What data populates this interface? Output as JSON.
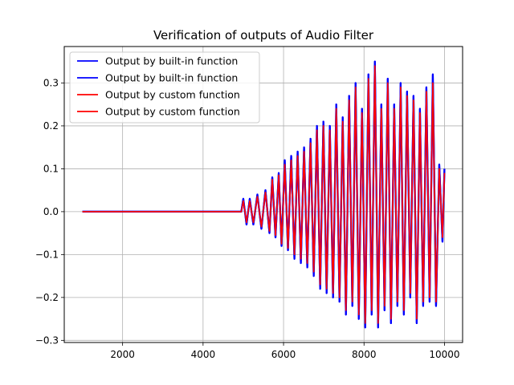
{
  "chart_data": {
    "type": "line",
    "title": "Verification of outputs of Audio Filter",
    "xlabel": "",
    "ylabel": "",
    "xlim": [
      550,
      10450
    ],
    "ylim": [
      -0.305,
      0.385
    ],
    "x_ticks": [
      2000,
      4000,
      6000,
      8000,
      10000
    ],
    "x_tick_labels": [
      "2000",
      "4000",
      "6000",
      "8000",
      "10000"
    ],
    "y_ticks": [
      -0.3,
      -0.2,
      -0.1,
      0.0,
      0.1,
      0.2,
      0.3
    ],
    "y_tick_labels": [
      "−0.3",
      "−0.2",
      "−0.1",
      "0.0",
      "0.1",
      "0.2",
      "0.3"
    ],
    "grid": true,
    "legend_position": "upper-left",
    "series": [
      {
        "name": "Output by built-in function",
        "color": "#0000ff",
        "x": [
          1000,
          4950,
          5000,
          5080,
          5160,
          5250,
          5350,
          5450,
          5550,
          5650,
          5720,
          5800,
          5880,
          5950,
          6030,
          6110,
          6190,
          6270,
          6350,
          6430,
          6510,
          6590,
          6670,
          6750,
          6830,
          6910,
          6990,
          7070,
          7150,
          7230,
          7310,
          7390,
          7470,
          7550,
          7630,
          7710,
          7790,
          7870,
          7950,
          8030,
          8110,
          8190,
          8270,
          8350,
          8430,
          8510,
          8590,
          8670,
          8750,
          8830,
          8910,
          8990,
          9070,
          9150,
          9230,
          9310,
          9390,
          9470,
          9550,
          9630,
          9710,
          9790,
          9870,
          9950,
          10000
        ],
        "y": [
          0.0,
          0.0,
          0.03,
          -0.03,
          0.03,
          -0.03,
          0.04,
          -0.04,
          0.05,
          -0.05,
          0.08,
          -0.06,
          0.09,
          -0.08,
          0.12,
          -0.09,
          0.13,
          -0.11,
          0.14,
          -0.12,
          0.15,
          -0.13,
          0.17,
          -0.15,
          0.2,
          -0.18,
          0.21,
          -0.19,
          0.2,
          -0.2,
          0.25,
          -0.21,
          0.22,
          -0.24,
          0.27,
          -0.22,
          0.3,
          -0.25,
          0.24,
          -0.27,
          0.32,
          -0.24,
          0.35,
          -0.27,
          0.25,
          -0.23,
          0.31,
          -0.26,
          0.25,
          -0.22,
          0.3,
          -0.24,
          0.28,
          -0.2,
          0.27,
          -0.26,
          0.24,
          -0.22,
          0.29,
          -0.21,
          0.32,
          -0.22,
          0.11,
          -0.07,
          0.1
        ]
      },
      {
        "name": "Output by built-in function",
        "color": "#0000ff",
        "x": [
          1000,
          4950,
          5000,
          5080,
          5160,
          5250,
          5350,
          5450,
          5550,
          5650,
          5720,
          5800,
          5880,
          5950,
          6030,
          6110,
          6190,
          6270,
          6350,
          6430,
          6510,
          6590,
          6670,
          6750,
          6830,
          6910,
          6990,
          7070,
          7150,
          7230,
          7310,
          7390,
          7470,
          7550,
          7630,
          7710,
          7790,
          7870,
          7950,
          8030,
          8110,
          8190,
          8270,
          8350,
          8430,
          8510,
          8590,
          8670,
          8750,
          8830,
          8910,
          8990,
          9070,
          9150,
          9230,
          9310,
          9390,
          9470,
          9550,
          9630,
          9710,
          9790,
          9870,
          9950,
          10000
        ],
        "y": [
          0.0,
          0.0,
          0.03,
          -0.03,
          0.03,
          -0.03,
          0.04,
          -0.04,
          0.05,
          -0.05,
          0.08,
          -0.06,
          0.09,
          -0.08,
          0.12,
          -0.09,
          0.13,
          -0.11,
          0.14,
          -0.12,
          0.15,
          -0.13,
          0.17,
          -0.15,
          0.2,
          -0.18,
          0.21,
          -0.19,
          0.2,
          -0.2,
          0.25,
          -0.21,
          0.22,
          -0.24,
          0.27,
          -0.22,
          0.3,
          -0.25,
          0.24,
          -0.27,
          0.32,
          -0.24,
          0.35,
          -0.27,
          0.25,
          -0.23,
          0.31,
          -0.26,
          0.25,
          -0.22,
          0.3,
          -0.24,
          0.28,
          -0.2,
          0.27,
          -0.26,
          0.24,
          -0.22,
          0.29,
          -0.21,
          0.32,
          -0.22,
          0.11,
          -0.07,
          0.1
        ]
      },
      {
        "name": "Output by custom function",
        "color": "#ff0000",
        "x": [
          1000,
          4950,
          5000,
          5080,
          5160,
          5250,
          5350,
          5450,
          5550,
          5650,
          5720,
          5800,
          5880,
          5950,
          6030,
          6110,
          6190,
          6270,
          6350,
          6430,
          6510,
          6590,
          6670,
          6750,
          6830,
          6910,
          6990,
          7070,
          7150,
          7230,
          7310,
          7390,
          7470,
          7550,
          7630,
          7710,
          7790,
          7870,
          7950,
          8030,
          8110,
          8190,
          8270,
          8350,
          8430,
          8510,
          8590,
          8670,
          8750,
          8830,
          8910,
          8990,
          9070,
          9150,
          9230,
          9310,
          9390,
          9470,
          9550,
          9630,
          9710,
          9790,
          9870,
          9950,
          10000
        ],
        "y": [
          0.0,
          0.0,
          0.025,
          -0.025,
          0.025,
          -0.025,
          0.035,
          -0.035,
          0.045,
          -0.045,
          0.075,
          -0.055,
          0.085,
          -0.075,
          0.11,
          -0.085,
          0.12,
          -0.1,
          0.13,
          -0.11,
          0.14,
          -0.12,
          0.16,
          -0.14,
          0.19,
          -0.17,
          0.2,
          -0.18,
          0.19,
          -0.19,
          0.24,
          -0.2,
          0.21,
          -0.23,
          0.26,
          -0.21,
          0.29,
          -0.24,
          0.23,
          -0.26,
          0.31,
          -0.23,
          0.34,
          -0.26,
          0.24,
          -0.22,
          0.3,
          -0.25,
          0.24,
          -0.21,
          0.29,
          -0.23,
          0.27,
          -0.19,
          0.26,
          -0.25,
          0.23,
          -0.21,
          0.28,
          -0.2,
          0.3,
          -0.21,
          0.1,
          -0.06,
          0.09
        ]
      },
      {
        "name": "Output by custom function",
        "color": "#ff0000",
        "x": [
          1000,
          4950,
          5000,
          5080,
          5160,
          5250,
          5350,
          5450,
          5550,
          5650,
          5720,
          5800,
          5880,
          5950,
          6030,
          6110,
          6190,
          6270,
          6350,
          6430,
          6510,
          6590,
          6670,
          6750,
          6830,
          6910,
          6990,
          7070,
          7150,
          7230,
          7310,
          7390,
          7470,
          7550,
          7630,
          7710,
          7790,
          7870,
          7950,
          8030,
          8110,
          8190,
          8270,
          8350,
          8430,
          8510,
          8590,
          8670,
          8750,
          8830,
          8910,
          8990,
          9070,
          9150,
          9230,
          9310,
          9390,
          9470,
          9550,
          9630,
          9710,
          9790,
          9870,
          9950,
          10000
        ],
        "y": [
          0.0,
          0.0,
          0.025,
          -0.025,
          0.025,
          -0.025,
          0.035,
          -0.035,
          0.045,
          -0.045,
          0.075,
          -0.055,
          0.085,
          -0.075,
          0.11,
          -0.085,
          0.12,
          -0.1,
          0.13,
          -0.11,
          0.14,
          -0.12,
          0.16,
          -0.14,
          0.19,
          -0.17,
          0.2,
          -0.18,
          0.19,
          -0.19,
          0.24,
          -0.2,
          0.21,
          -0.23,
          0.26,
          -0.21,
          0.29,
          -0.24,
          0.23,
          -0.26,
          0.31,
          -0.23,
          0.34,
          -0.26,
          0.24,
          -0.22,
          0.3,
          -0.25,
          0.24,
          -0.21,
          0.29,
          -0.23,
          0.27,
          -0.19,
          0.26,
          -0.25,
          0.23,
          -0.21,
          0.28,
          -0.2,
          0.3,
          -0.21,
          0.1,
          -0.06,
          0.09
        ]
      }
    ]
  }
}
